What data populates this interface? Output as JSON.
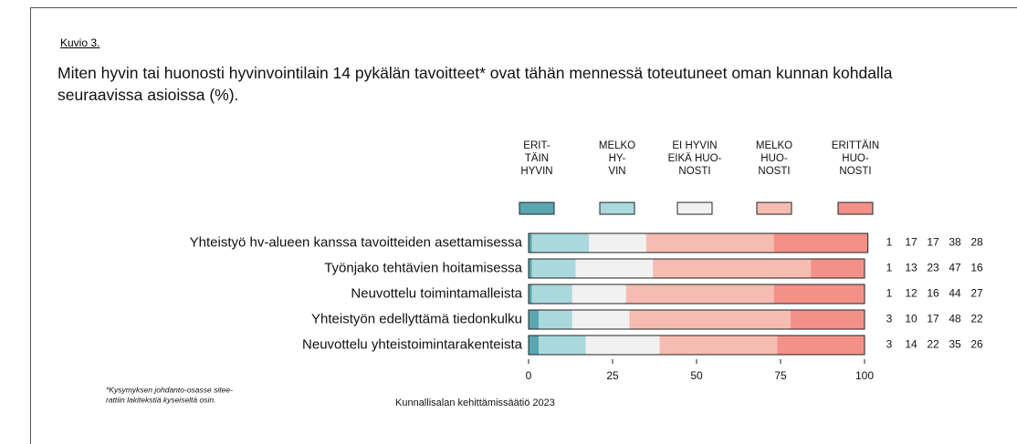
{
  "figure_label": "Kuvio 3.",
  "chart_data": {
    "type": "stacked_barh",
    "title": "Miten hyvin tai huonosti hyvinvointilain 14 pykälän tavoitteet* ovat tähän mennessä toteutuneet oman kunnan kohdalla seuraavissa asioissa (%).",
    "categories": [
      "Yhteistyö hv-alueen kanssa tavoitteiden asettamisessa",
      "Työnjako tehtävien hoitamisessa",
      "Neuvottelu toimintamalleista",
      "Yhteistyön edellyttämä tiedonkulku",
      "Neuvottelu yhteistoimintarakenteista"
    ],
    "series": [
      {
        "name": "ERIT-\nTÄIN\nHYVIN",
        "color": "#5aa6b3",
        "values": [
          1,
          1,
          1,
          3,
          3
        ]
      },
      {
        "name": "MELKO\nHY-\nVIN",
        "color": "#a9d9dd",
        "values": [
          17,
          13,
          12,
          10,
          14
        ]
      },
      {
        "name": "EI HYVIN\nEIKÄ HUO-\nNOSTI",
        "color": "#f1f1f1",
        "values": [
          17,
          23,
          16,
          17,
          22
        ]
      },
      {
        "name": "MELKO\nHUO-\nNOSTI",
        "color": "#f7bcb1",
        "values": [
          38,
          47,
          44,
          48,
          35
        ]
      },
      {
        "name": "ERITTÄIN\nHUO-\nNOSTI",
        "color": "#f39189",
        "values": [
          28,
          16,
          27,
          22,
          26
        ]
      }
    ],
    "xlim": [
      0,
      100
    ],
    "xticks": [
      0,
      25,
      50,
      75,
      100
    ],
    "footnote": [
      "*Kysymyksen johdanto-osasse sitee-",
      "rattiin lakitekstiä kyseiseltä osin."
    ],
    "source": "Kunnallisalan kehittämissäätiö 2023"
  }
}
